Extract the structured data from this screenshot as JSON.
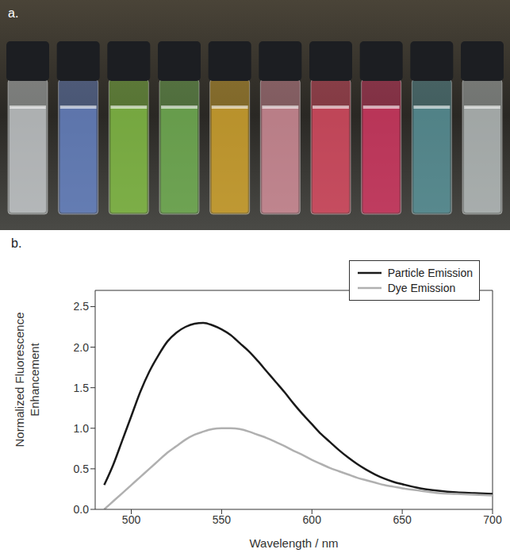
{
  "panel_a": {
    "label": "a."
  },
  "panel_b": {
    "label": "b."
  },
  "chart_data": {
    "type": "line",
    "x_label": "Wavelength / nm",
    "y_label": "Normalized Fluorescence Enhancement",
    "x": [
      485,
      490,
      495,
      500,
      505,
      510,
      515,
      520,
      525,
      530,
      535,
      540,
      545,
      550,
      555,
      560,
      565,
      570,
      575,
      580,
      585,
      590,
      595,
      600,
      605,
      610,
      615,
      620,
      625,
      630,
      635,
      640,
      645,
      650,
      660,
      670,
      680,
      690,
      700
    ],
    "series": [
      {
        "name": "Particle Emission",
        "color": "#1a1a1a",
        "values": [
          0.3,
          0.55,
          0.85,
          1.15,
          1.45,
          1.7,
          1.9,
          2.07,
          2.18,
          2.25,
          2.29,
          2.3,
          2.27,
          2.22,
          2.15,
          2.05,
          1.95,
          1.83,
          1.7,
          1.57,
          1.44,
          1.3,
          1.17,
          1.05,
          0.93,
          0.83,
          0.73,
          0.64,
          0.56,
          0.49,
          0.43,
          0.38,
          0.34,
          0.31,
          0.26,
          0.23,
          0.21,
          0.2,
          0.19
        ]
      },
      {
        "name": "Dye Emission",
        "color": "#b0b0b0",
        "values": [
          0.0,
          0.1,
          0.2,
          0.3,
          0.4,
          0.5,
          0.6,
          0.7,
          0.78,
          0.86,
          0.92,
          0.96,
          0.99,
          1.0,
          1.0,
          0.99,
          0.96,
          0.92,
          0.88,
          0.83,
          0.78,
          0.72,
          0.67,
          0.61,
          0.56,
          0.51,
          0.47,
          0.43,
          0.39,
          0.36,
          0.33,
          0.3,
          0.28,
          0.26,
          0.23,
          0.2,
          0.19,
          0.18,
          0.17
        ]
      }
    ],
    "xlim": [
      480,
      700
    ],
    "xticks": [
      500,
      550,
      600,
      650,
      700
    ],
    "ylim": [
      0,
      2.7
    ],
    "yticks": [
      {
        "value": 0,
        "label": "0.0"
      },
      {
        "value": 0.5,
        "label": "0.5"
      },
      {
        "value": 1,
        "label": "1.0"
      },
      {
        "value": 1.5,
        "label": "1.5"
      },
      {
        "value": 2,
        "label": "2.0"
      },
      {
        "value": 2.5,
        "label": "2.5"
      }
    ],
    "legend": "upper right",
    "grid": false
  }
}
